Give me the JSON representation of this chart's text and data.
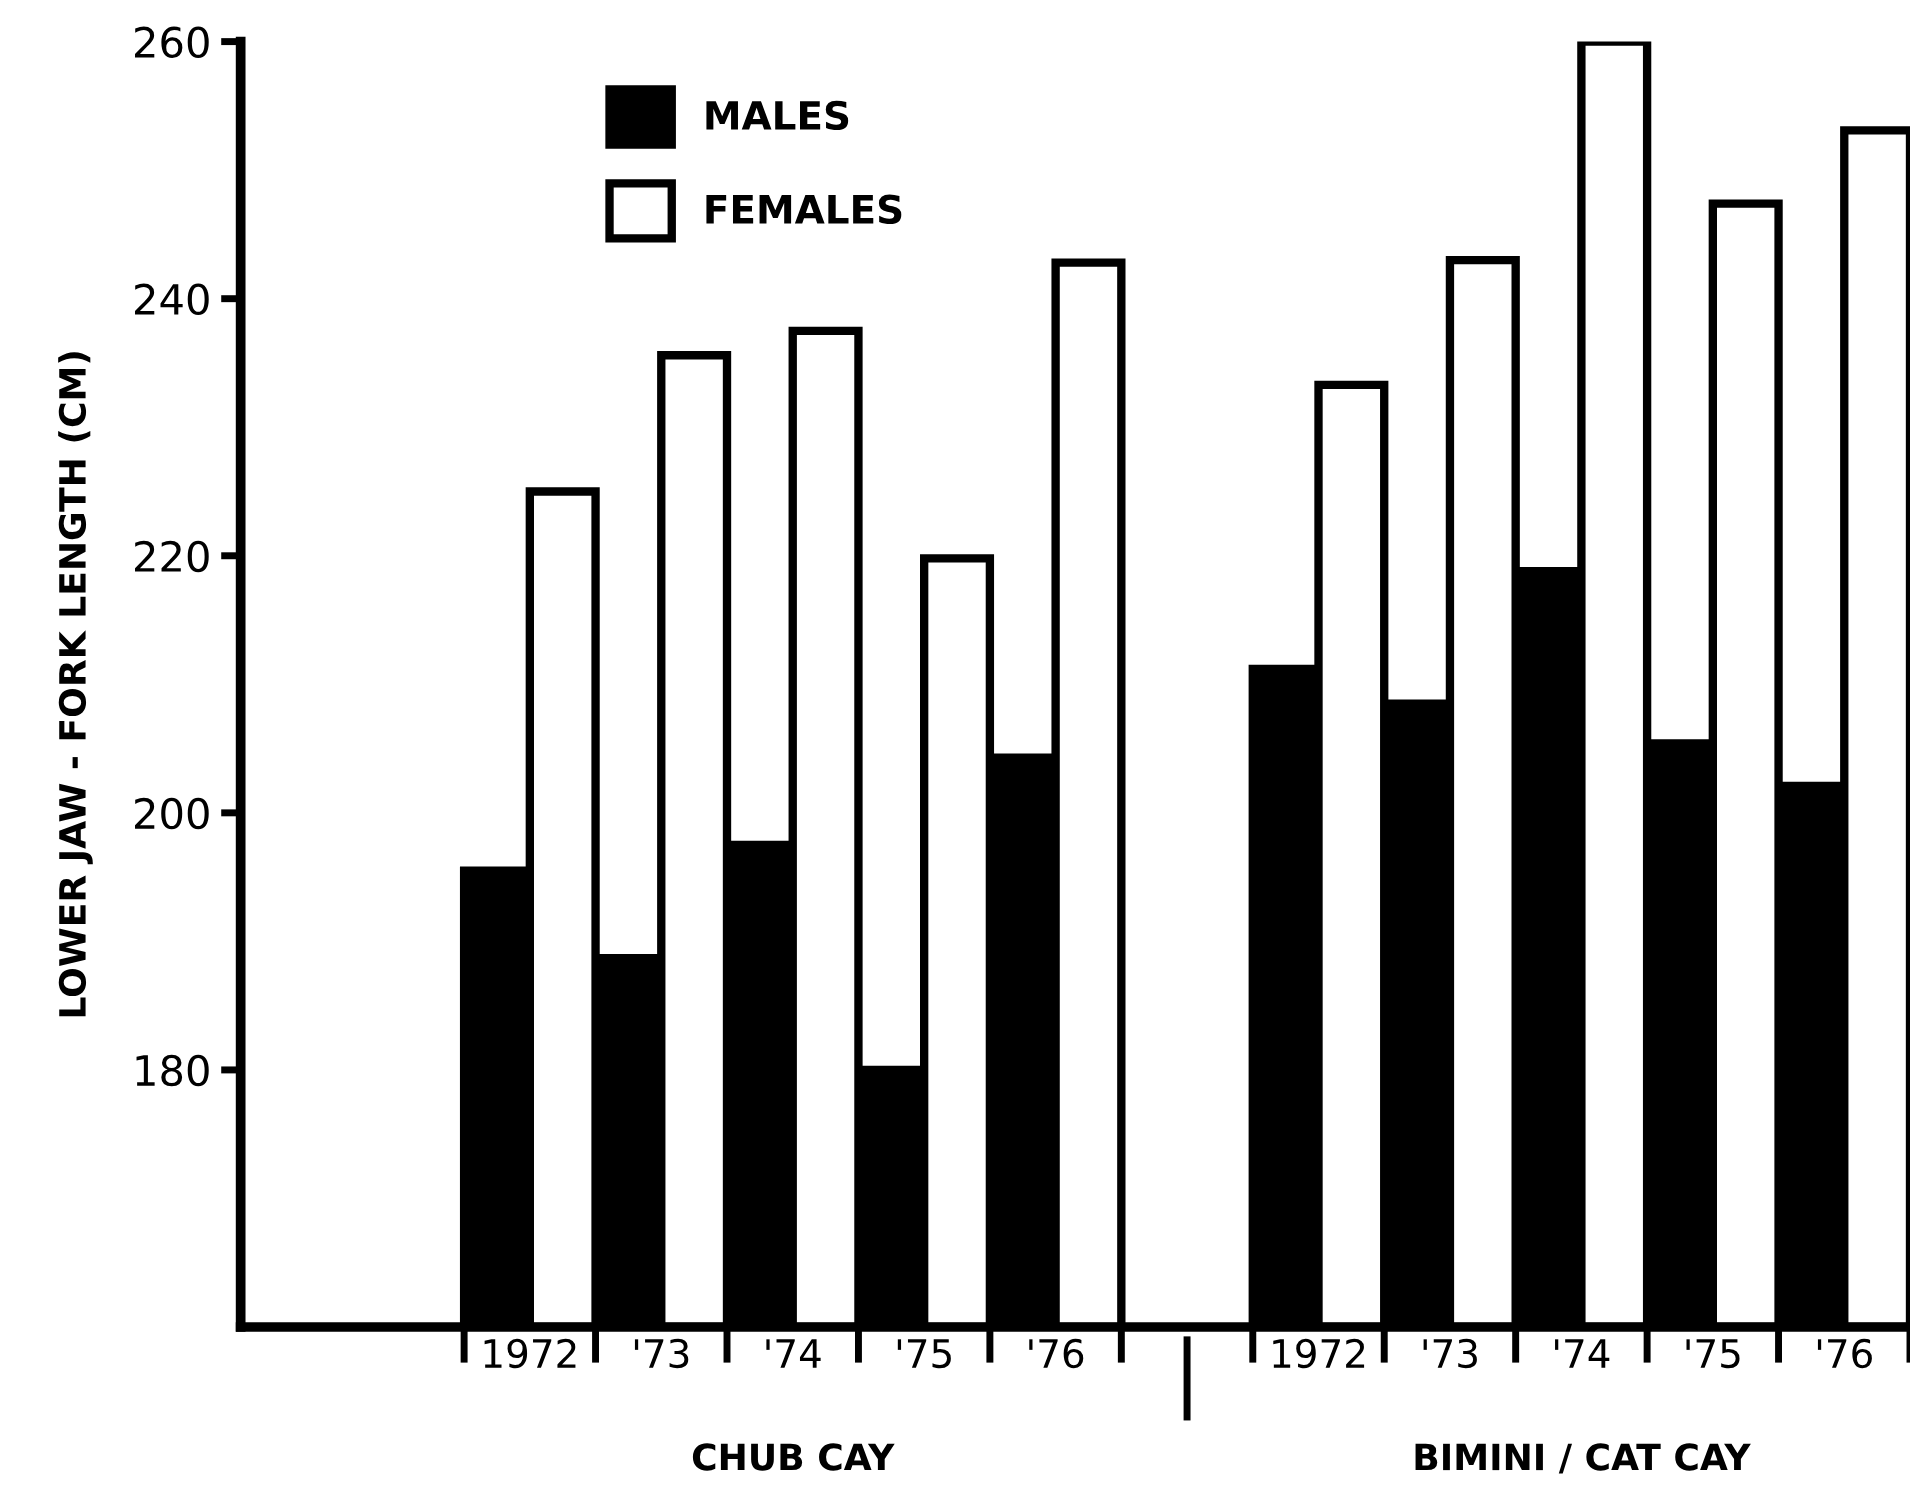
{
  "chart_data": {
    "type": "bar",
    "ylabel": "LOWER JAW - FORK LENGTH (CM)",
    "categories": [
      "1972",
      "'73",
      "'74",
      "'75",
      "'76",
      null,
      "1972",
      "'73",
      "'74",
      "'75",
      "'76"
    ],
    "series": [
      {
        "name": "MALES",
        "color": "#000000",
        "values": [
          195.5,
          188.7,
          197.5,
          180,
          204.3,
          null,
          211.2,
          208.5,
          218.8,
          205.4,
          202.1
        ]
      },
      {
        "name": "FEMALES",
        "color": "#ffffff",
        "values": [
          225,
          235.6,
          237.5,
          219.8,
          242.8,
          null,
          233.3,
          243,
          260,
          247.4,
          253.1
        ]
      }
    ],
    "ylim": [
      160,
      260
    ],
    "yticks": [
      180,
      200,
      220,
      240,
      260
    ],
    "grid": false,
    "legend": "top left",
    "annotations": [
      "CHUB CAY",
      "BIMINI / CAT CAY"
    ]
  }
}
